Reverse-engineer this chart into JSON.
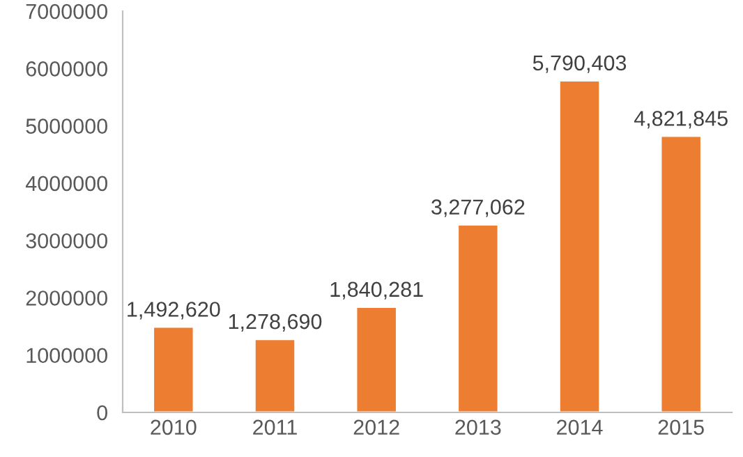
{
  "chart_data": {
    "type": "bar",
    "categories": [
      "2010",
      "2011",
      "2012",
      "2013",
      "2014",
      "2015"
    ],
    "values": [
      1492620,
      1278690,
      1840281,
      3277062,
      5790403,
      4821845
    ],
    "value_labels": [
      "1,492,620",
      "1,278,690",
      "1,840,281",
      "3,277,062",
      "5,790,403",
      "4,821,845"
    ],
    "color": "#ed7d31",
    "ylim": [
      0,
      7000000
    ],
    "yticks": [
      0,
      1000000,
      2000000,
      3000000,
      4000000,
      5000000,
      6000000,
      7000000
    ],
    "grid": false,
    "legend": false
  }
}
